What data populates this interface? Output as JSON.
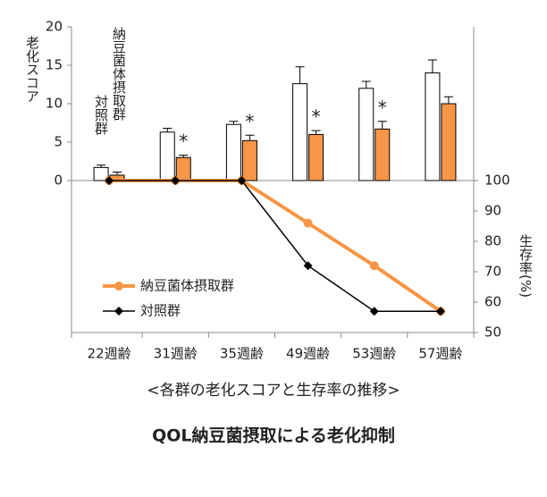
{
  "chart_data": [
    {
      "type": "bar",
      "ylabel": "老化スコア",
      "categories": [
        "22週齢",
        "31週齢",
        "35週齢",
        "49週齢",
        "53週齢",
        "57週齢"
      ],
      "ylim": [
        0,
        20
      ],
      "yticks": [
        0,
        5,
        10,
        15,
        20
      ],
      "series": [
        {
          "name": "対照群",
          "color": "#ffffff",
          "edgecolor": "#000000",
          "values": [
            1.7,
            6.3,
            7.3,
            12.6,
            12.0,
            14.0
          ],
          "errors": [
            0.3,
            0.5,
            0.4,
            2.2,
            0.9,
            1.7
          ]
        },
        {
          "name": "納豆菌体摂取群",
          "color": "#f79646",
          "edgecolor": "#000000",
          "values": [
            0.7,
            3.0,
            5.2,
            6.0,
            6.7,
            10.0
          ],
          "errors": [
            0.4,
            0.3,
            0.7,
            0.5,
            1.0,
            0.9
          ]
        }
      ],
      "markers": [
        null,
        "*",
        "*",
        "*",
        "*",
        null
      ]
    },
    {
      "type": "line",
      "ylabel": "生存率(%)",
      "axis": "y2",
      "ylim": [
        50,
        100
      ],
      "yticks": [
        50,
        60,
        70,
        80,
        90,
        100
      ],
      "legend": "lower-left",
      "series": [
        {
          "name": "納豆菌体摂取群",
          "color": "#f79646",
          "marker": "circle",
          "values": [
            100,
            100,
            100,
            86,
            72,
            57
          ]
        },
        {
          "name": "対照群",
          "color": "#000000",
          "marker": "diamond",
          "values": [
            100,
            100,
            100,
            72,
            57,
            57
          ]
        }
      ]
    }
  ],
  "caption": "<各群の老化スコアと生存率の推移>",
  "heading": "QOL納豆菌摂取による老化抑制"
}
